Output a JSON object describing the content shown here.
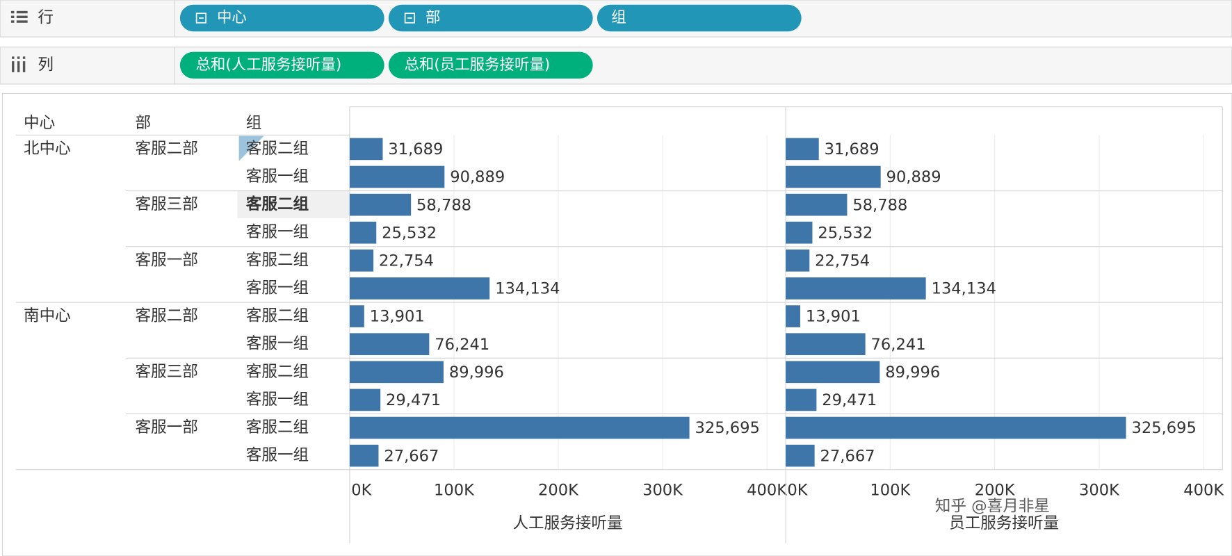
{
  "shelves": {
    "rows": {
      "label": "行",
      "pills": [
        "中心",
        "部",
        "组"
      ]
    },
    "columns": {
      "label": "列",
      "pills": [
        "总和(人工服务接听量)",
        "总和(员工服务接听量)"
      ]
    }
  },
  "headers": [
    "中心",
    "部",
    "组"
  ],
  "centers": [
    {
      "name": "北中心",
      "depts": [
        {
          "name": "客服二部",
          "groups": [
            "客服二组",
            "客服一组"
          ]
        },
        {
          "name": "客服三部",
          "groups": [
            "客服二组",
            "客服一组"
          ]
        },
        {
          "name": "客服一部",
          "groups": [
            "客服二组",
            "客服一组"
          ]
        }
      ]
    },
    {
      "name": "南中心",
      "depts": [
        {
          "name": "客服二部",
          "groups": [
            "客服二组",
            "客服一组"
          ]
        },
        {
          "name": "客服三部",
          "groups": [
            "客服二组",
            "客服一组"
          ]
        },
        {
          "name": "客服一部",
          "groups": [
            "客服二组",
            "客服一组"
          ]
        }
      ]
    }
  ],
  "chart_data": [
    {
      "type": "bar",
      "xlabel": "人工服务接听量",
      "color": "#3f76aa",
      "grid": true,
      "values": [
        31689,
        90889,
        58788,
        25532,
        22754,
        134134,
        13901,
        76241,
        89996,
        29471,
        325695,
        27667
      ],
      "value_labels": [
        "31,689",
        "90,889",
        "58,788",
        "25,532",
        "22,754",
        "134,134",
        "13,901",
        "76,241",
        "89,996",
        "29,471",
        "325,695",
        "27,667"
      ],
      "xlim": [
        0,
        418000
      ],
      "xticks": [
        {
          "value": 0,
          "label": "0K"
        },
        {
          "value": 100000,
          "label": "100K"
        },
        {
          "value": 200000,
          "label": "200K"
        },
        {
          "value": 300000,
          "label": "300K"
        },
        {
          "value": 400000,
          "label": "400K"
        }
      ]
    },
    {
      "type": "bar",
      "xlabel": "员工服务接听量",
      "color": "#3f76aa",
      "grid": true,
      "values": [
        31689,
        90889,
        58788,
        25532,
        22754,
        134134,
        13901,
        76241,
        89996,
        29471,
        325695,
        27667
      ],
      "value_labels": [
        "31,689",
        "90,889",
        "58,788",
        "25,532",
        "22,754",
        "134,134",
        "13,901",
        "76,241",
        "89,996",
        "29,471",
        "325,695",
        "27,667"
      ],
      "xlim": [
        0,
        418000
      ],
      "xticks": [
        {
          "value": 0,
          "label": "0K"
        },
        {
          "value": 100000,
          "label": "100K"
        },
        {
          "value": 200000,
          "label": "200K"
        },
        {
          "value": 300000,
          "label": "300K"
        },
        {
          "value": 400000,
          "label": "400K"
        }
      ]
    }
  ],
  "watermark": "知乎 @喜月非星"
}
